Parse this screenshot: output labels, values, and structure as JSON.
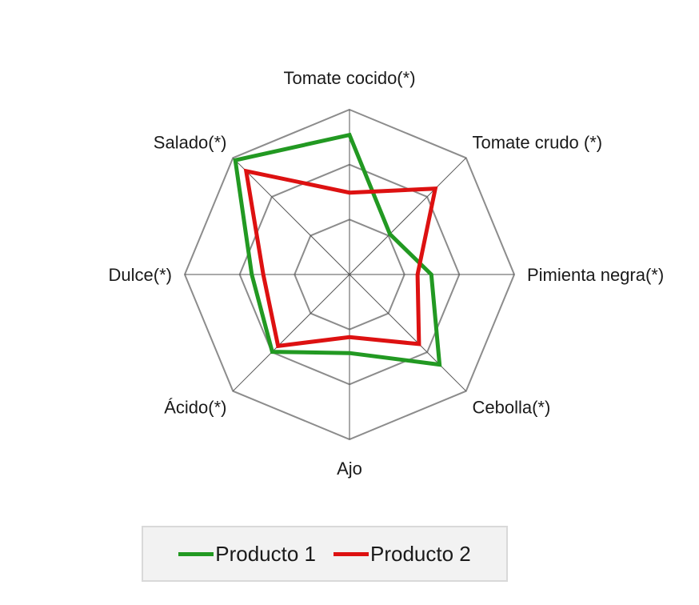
{
  "chart_data": {
    "type": "radar",
    "categories": [
      "Tomate cocido(*)",
      "Tomate crudo (*)",
      "Pimienta negra(*)",
      "Cebolla(*)",
      "Ajo",
      "Ácido(*)",
      "Dulce(*)",
      "Salado(*)"
    ],
    "rmax": 3,
    "rings": [
      1,
      2,
      3
    ],
    "series": [
      {
        "name": "Producto 1",
        "color": "#229922",
        "values": [
          2.54,
          1.04,
          1.49,
          2.32,
          1.43,
          1.99,
          1.78,
          2.94
        ]
      },
      {
        "name": "Producto 2",
        "color": "#dd1111",
        "values": [
          1.49,
          2.21,
          1.24,
          1.79,
          1.14,
          1.84,
          1.57,
          2.66
        ]
      }
    ],
    "legend_position": "bottom"
  }
}
